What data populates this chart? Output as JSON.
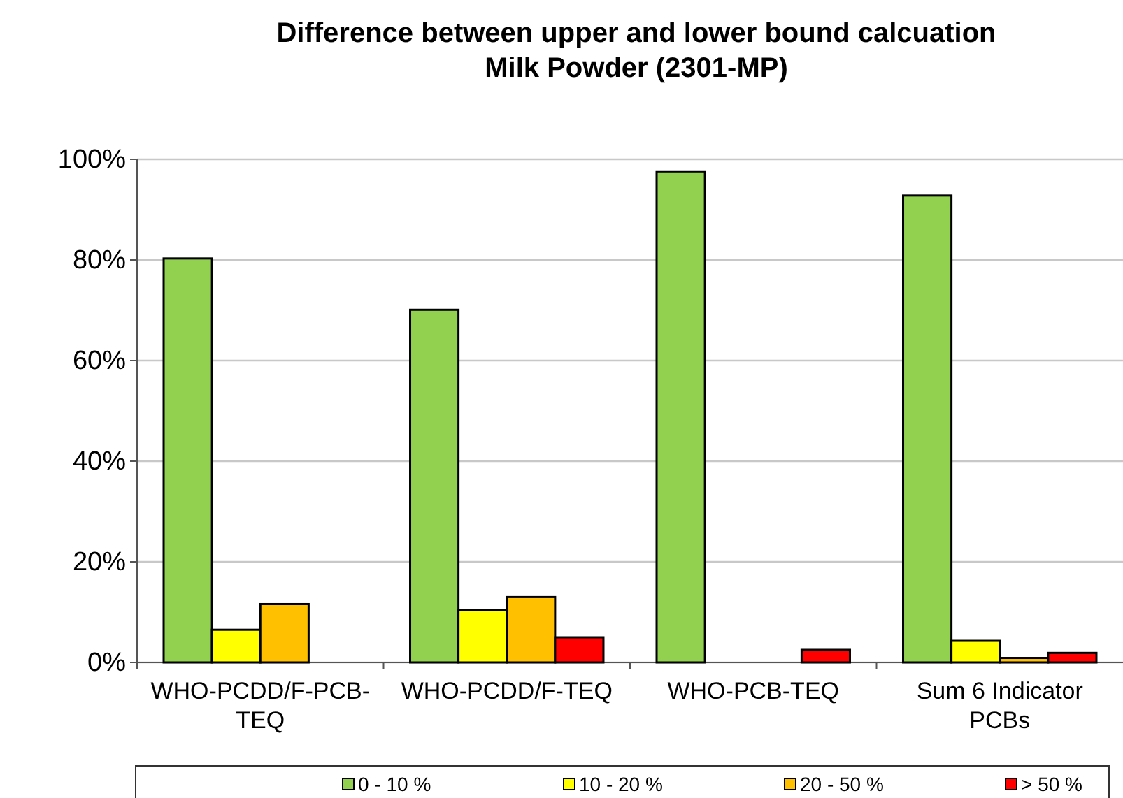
{
  "chart_data": {
    "type": "bar",
    "title": "Difference between upper and lower bound calcuation\nMilk Powder (2301-MP)",
    "categories": [
      "WHO-PCDD/F-PCB-TEQ",
      "WHO-PCDD/F-TEQ",
      "WHO-PCB-TEQ",
      "Sum 6 Indicator PCBs"
    ],
    "series": [
      {
        "name": "0 - 10 %",
        "color": "#92d050",
        "values": [
          80.3,
          70.1,
          97.6,
          92.8
        ]
      },
      {
        "name": "10 - 20 %",
        "color": "#ffff00",
        "values": [
          6.5,
          10.4,
          0,
          4.3
        ]
      },
      {
        "name": "20 - 50 %",
        "color": "#ffc000",
        "values": [
          11.6,
          13.0,
          0,
          0.9
        ]
      },
      {
        "name": "> 50 %",
        "color": "#ff0000",
        "values": [
          0,
          5.0,
          2.5,
          1.9
        ]
      }
    ],
    "ylim": [
      0,
      100
    ],
    "yticks": [
      {
        "value": 0,
        "label": "0%"
      },
      {
        "value": 20,
        "label": "20%"
      },
      {
        "value": 40,
        "label": "40%"
      },
      {
        "value": 60,
        "label": "60%"
      },
      {
        "value": 80,
        "label": "80%"
      },
      {
        "value": 100,
        "label": "100%"
      }
    ],
    "grid": "y",
    "legend": "bottom"
  }
}
